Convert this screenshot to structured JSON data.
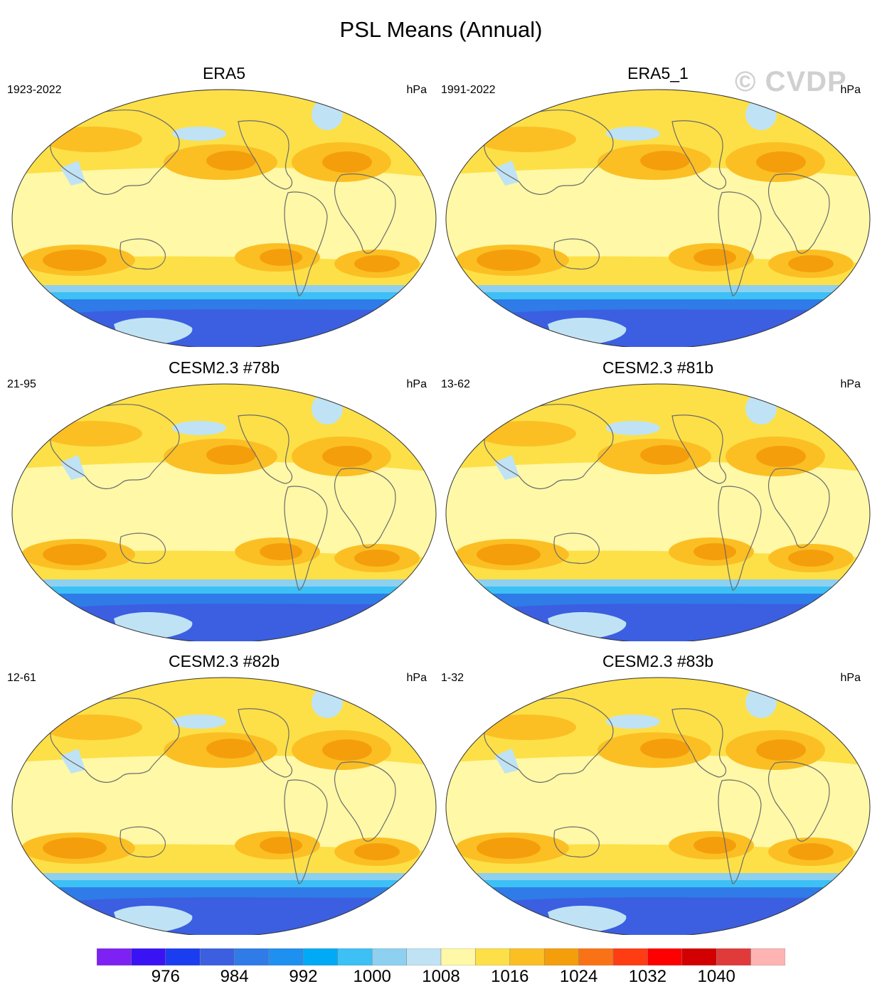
{
  "title": "PSL Means (Annual)",
  "watermark": "© CVDP",
  "panels": [
    {
      "title": "ERA5",
      "period": "1923-2022",
      "units": "hPa"
    },
    {
      "title": "ERA5_1",
      "period": "1991-2022",
      "units": "hPa"
    },
    {
      "title": "CESM2.3 #78b",
      "period": "21-95",
      "units": "hPa"
    },
    {
      "title": "CESM2.3 #81b",
      "period": "13-62",
      "units": "hPa"
    },
    {
      "title": "CESM2.3 #82b",
      "period": "12-61",
      "units": "hPa"
    },
    {
      "title": "CESM2.3 #83b",
      "period": "1-32",
      "units": "hPa"
    }
  ],
  "colorbar": {
    "labels": [
      "976",
      "984",
      "992",
      "1000",
      "1008",
      "1016",
      "1024",
      "1032",
      "1040"
    ],
    "colors": [
      "#7d22f2",
      "#3a13f5",
      "#1a3df0",
      "#3b5fe0",
      "#2f7be8",
      "#1e90f0",
      "#00aaf5",
      "#3cc0f5",
      "#8ed0ef",
      "#bfe3f5",
      "#fff8a6",
      "#fde047",
      "#fbbf24",
      "#f59e0b",
      "#f97316",
      "#ff3c12",
      "#ff0000",
      "#d20000",
      "#e03a3a",
      "#ffb3b3"
    ]
  },
  "map_colors": {
    "background": "#fde047",
    "tropics": "#fff8a6",
    "high": "#fbbf24",
    "high_center": "#f59e0b",
    "low_light": "#bfe3f5",
    "southern_ocean_1": "#8ed0ef",
    "southern_ocean_2": "#3cc0f5",
    "southern_ocean_3": "#2f7be8",
    "southern_ocean_4": "#3b5fe0",
    "antarctica": "#bfe3f5",
    "coast": "#6b6b6b"
  }
}
